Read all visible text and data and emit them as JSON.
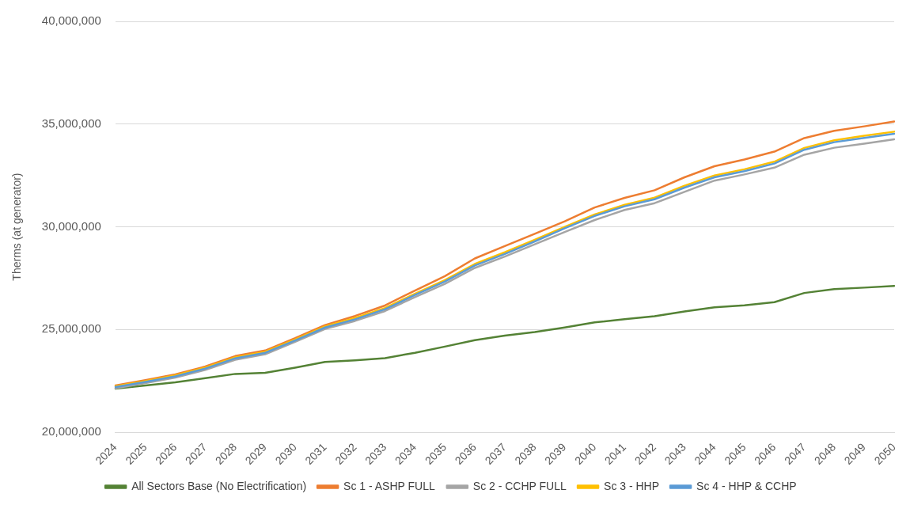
{
  "chart_data": {
    "type": "line",
    "ylabel": "Therms (at generator)",
    "categories": [
      "2024",
      "2025",
      "2026",
      "2027",
      "2028",
      "2029",
      "2030",
      "2031",
      "2032",
      "2033",
      "2034",
      "2035",
      "2036",
      "2037",
      "2038",
      "2039",
      "2040",
      "2041",
      "2042",
      "2043",
      "2044",
      "2045",
      "2046",
      "2047",
      "2048",
      "2049",
      "2050"
    ],
    "series": [
      {
        "name": "All Sectors Base (No Electrification)",
        "color": "#548235",
        "values": [
          22120000,
          22280000,
          22430000,
          22630000,
          22840000,
          22890000,
          23140000,
          23420000,
          23500000,
          23610000,
          23870000,
          24170000,
          24480000,
          24700000,
          24880000,
          25100000,
          25350000,
          25500000,
          25650000,
          25880000,
          26080000,
          26180000,
          26330000,
          26780000,
          26970000,
          27040000,
          27120000
        ]
      },
      {
        "name": "Sc 1 - ASHP FULL",
        "color": "#ed7d31",
        "values": [
          22280000,
          22540000,
          22820000,
          23200000,
          23710000,
          23980000,
          24580000,
          25220000,
          25660000,
          26170000,
          26900000,
          27600000,
          28460000,
          29060000,
          29660000,
          30270000,
          30940000,
          31410000,
          31780000,
          32410000,
          32950000,
          33280000,
          33660000,
          34320000,
          34670000,
          34890000,
          35130000
        ]
      },
      {
        "name": "Sc 2 - CCHP FULL",
        "color": "#a5a5a5",
        "values": [
          22140000,
          22390000,
          22660000,
          23040000,
          23530000,
          23800000,
          24400000,
          25030000,
          25420000,
          25900000,
          26580000,
          27220000,
          28000000,
          28550000,
          29150000,
          29750000,
          30330000,
          30820000,
          31150000,
          31700000,
          32250000,
          32550000,
          32880000,
          33510000,
          33850000,
          34050000,
          34260000
        ]
      },
      {
        "name": "Sc 3 - HHP",
        "color": "#ffc000",
        "values": [
          22240000,
          22490000,
          22770000,
          23150000,
          23650000,
          23920000,
          24520000,
          25150000,
          25560000,
          26050000,
          26740000,
          27410000,
          28190000,
          28760000,
          29370000,
          30000000,
          30600000,
          31070000,
          31420000,
          32000000,
          32500000,
          32800000,
          33170000,
          33840000,
          34210000,
          34430000,
          34630000
        ]
      },
      {
        "name": "Sc 4 - HHP & CCHP",
        "color": "#5b9bd5",
        "values": [
          22200000,
          22450000,
          22720000,
          23100000,
          23600000,
          23870000,
          24470000,
          25100000,
          25500000,
          25990000,
          26680000,
          27340000,
          28120000,
          28680000,
          29290000,
          29930000,
          30530000,
          31000000,
          31340000,
          31910000,
          32410000,
          32710000,
          33080000,
          33750000,
          34120000,
          34330000,
          34530000
        ]
      }
    ],
    "ylim": [
      20000000,
      40000000
    ],
    "yticks": [
      {
        "value": 20000000,
        "label": "20,000,000"
      },
      {
        "value": 25000000,
        "label": "25,000,000"
      },
      {
        "value": 30000000,
        "label": "30,000,000"
      },
      {
        "value": 35000000,
        "label": "35,000,000"
      },
      {
        "value": 40000000,
        "label": "40,000,000"
      }
    ],
    "grid": "y",
    "legend": "bottom",
    "marker": "none",
    "line_style": "solid"
  }
}
